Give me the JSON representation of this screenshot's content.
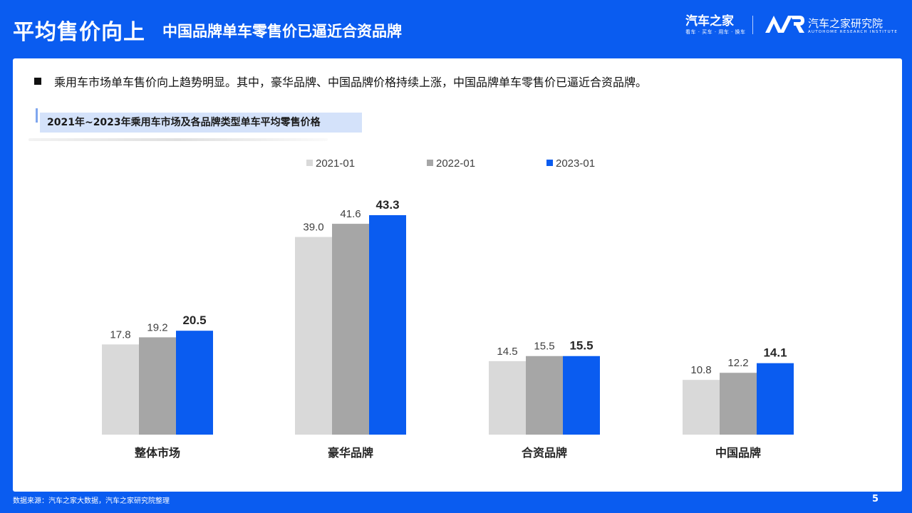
{
  "header": {
    "title": "平均售价向上",
    "subtitle": "中国品牌单车零售价已逼近合资品牌",
    "logo_primary": "汽车之家",
    "logo_primary_slogan": "看车 · 买车 · 用车 · 换车",
    "logo_secondary": "汽车之家研究院",
    "logo_secondary_en": "AUTOHOME RESEARCH INSTITUTE"
  },
  "bullet": "乘用车市场单车售价向上趋势明显。其中，豪华品牌、中国品牌价格持续上涨，中国品牌单车零售价已逼近合资品牌。",
  "colors": {
    "background": "#0a5cf0",
    "series": [
      "#d9d9d9",
      "#a6a6a6",
      "#0a5cf0"
    ]
  },
  "chart_data": {
    "type": "bar",
    "title": "2021年~2023年乘用车市场及各品牌类型单车平均零售价格",
    "categories": [
      "整体市场",
      "豪华品牌",
      "合资品牌",
      "中国品牌"
    ],
    "series": [
      {
        "name": "2021-01",
        "values": [
          17.8,
          39.0,
          14.5,
          10.8
        ]
      },
      {
        "name": "2022-01",
        "values": [
          19.2,
          41.6,
          15.5,
          12.2
        ]
      },
      {
        "name": "2023-01",
        "values": [
          20.5,
          43.3,
          15.5,
          14.1
        ]
      }
    ],
    "value_labels": [
      [
        "17.8",
        "39.0",
        "14.5",
        "10.8"
      ],
      [
        "19.2",
        "41.6",
        "15.5",
        "12.2"
      ],
      [
        "20.5",
        "43.3",
        "15.5",
        "14.1"
      ]
    ],
    "ylim": [
      0,
      43.3
    ],
    "legend_position": "top",
    "grid": false,
    "highlight_series": "2023-01"
  },
  "footer": {
    "source": "数据来源：汽车之家大数据，汽车之家研究院整理",
    "page": "5"
  }
}
